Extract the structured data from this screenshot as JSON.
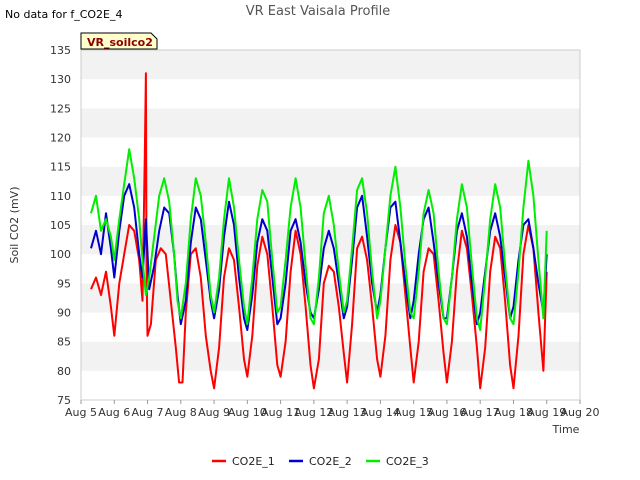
{
  "chart_data": {
    "type": "line",
    "title": "VR East Vaisala Profile",
    "no_data_note": "No data for f_CO2E_4",
    "badge": "VR_soilco2",
    "xlabel": "Time",
    "ylabel": "Soil CO2 (mV)",
    "ylim": [
      75,
      135
    ],
    "yticks": [
      75,
      80,
      85,
      90,
      95,
      100,
      105,
      110,
      115,
      120,
      125,
      130,
      135
    ],
    "xlim": [
      5,
      20
    ],
    "xticks": [
      {
        "value": 5,
        "label": "Aug 5"
      },
      {
        "value": 6,
        "label": "Aug 6"
      },
      {
        "value": 7,
        "label": "Aug 7"
      },
      {
        "value": 8,
        "label": "Aug 8"
      },
      {
        "value": 9,
        "label": "Aug 9"
      },
      {
        "value": 10,
        "label": "Aug 10"
      },
      {
        "value": 11,
        "label": "Aug 11"
      },
      {
        "value": 12,
        "label": "Aug 12"
      },
      {
        "value": 13,
        "label": "Aug 13"
      },
      {
        "value": 14,
        "label": "Aug 14"
      },
      {
        "value": 15,
        "label": "Aug 15"
      },
      {
        "value": 16,
        "label": "Aug 16"
      },
      {
        "value": 17,
        "label": "Aug 17"
      },
      {
        "value": 18,
        "label": "Aug 18"
      },
      {
        "value": 19,
        "label": "Aug 19"
      },
      {
        "value": 20,
        "label": "Aug 20"
      }
    ],
    "legend_position": "bottom-center",
    "grid": true,
    "series": [
      {
        "name": "CO2E_1",
        "color": "#ff0000",
        "x": [
          5.3,
          5.45,
          5.6,
          5.75,
          5.9,
          6.0,
          6.15,
          6.3,
          6.45,
          6.6,
          6.75,
          6.85,
          6.92,
          6.95,
          6.97,
          7.0,
          7.1,
          7.25,
          7.4,
          7.55,
          7.7,
          7.85,
          7.95,
          8.05,
          8.15,
          8.3,
          8.45,
          8.6,
          8.75,
          8.9,
          9.0,
          9.15,
          9.3,
          9.45,
          9.6,
          9.75,
          9.9,
          10.0,
          10.15,
          10.3,
          10.45,
          10.6,
          10.75,
          10.9,
          11.0,
          11.15,
          11.3,
          11.45,
          11.6,
          11.75,
          11.9,
          12.0,
          12.15,
          12.3,
          12.45,
          12.6,
          12.75,
          12.9,
          13.0,
          13.15,
          13.3,
          13.45,
          13.6,
          13.75,
          13.9,
          14.0,
          14.15,
          14.3,
          14.45,
          14.6,
          14.75,
          14.9,
          15.0,
          15.15,
          15.3,
          15.45,
          15.6,
          15.75,
          15.9,
          16.0,
          16.15,
          16.3,
          16.45,
          16.6,
          16.75,
          16.9,
          17.0,
          17.15,
          17.3,
          17.45,
          17.6,
          17.75,
          17.9,
          18.0,
          18.15,
          18.3,
          18.45,
          18.6,
          18.75,
          18.9,
          19.0
        ],
        "values": [
          94,
          96,
          93,
          97,
          91,
          86,
          95,
          100,
          105,
          104,
          99,
          92,
          118,
          131,
          98,
          86,
          88,
          99,
          101,
          100,
          92,
          84,
          78,
          78,
          90,
          100,
          101,
          96,
          86,
          80,
          77,
          84,
          96,
          101,
          99,
          91,
          82,
          79,
          86,
          98,
          103,
          100,
          91,
          81,
          79,
          85,
          97,
          104,
          100,
          91,
          81,
          77,
          82,
          95,
          98,
          97,
          91,
          83,
          78,
          88,
          101,
          103,
          99,
          91,
          82,
          79,
          86,
          99,
          105,
          102,
          93,
          84,
          78,
          85,
          97,
          101,
          100,
          92,
          83,
          78,
          85,
          97,
          104,
          101,
          93,
          84,
          77,
          84,
          97,
          103,
          101,
          92,
          81,
          77,
          86,
          100,
          105,
          101,
          90,
          80,
          97
        ]
      },
      {
        "name": "CO2E_2",
        "color": "#0000cc",
        "x": [
          5.3,
          5.45,
          5.6,
          5.75,
          5.9,
          6.0,
          6.15,
          6.3,
          6.45,
          6.6,
          6.75,
          6.85,
          6.95,
          7.05,
          7.2,
          7.35,
          7.5,
          7.65,
          7.8,
          7.9,
          8.0,
          8.15,
          8.3,
          8.45,
          8.6,
          8.75,
          8.9,
          9.0,
          9.15,
          9.3,
          9.45,
          9.6,
          9.75,
          9.9,
          10.0,
          10.15,
          10.3,
          10.45,
          10.6,
          10.75,
          10.9,
          11.0,
          11.15,
          11.3,
          11.45,
          11.6,
          11.75,
          11.9,
          12.0,
          12.15,
          12.3,
          12.45,
          12.6,
          12.75,
          12.9,
          13.0,
          13.15,
          13.3,
          13.45,
          13.6,
          13.75,
          13.9,
          14.0,
          14.15,
          14.3,
          14.45,
          14.6,
          14.75,
          14.9,
          15.0,
          15.15,
          15.3,
          15.45,
          15.6,
          15.75,
          15.9,
          16.0,
          16.15,
          16.3,
          16.45,
          16.6,
          16.75,
          16.9,
          17.0,
          17.15,
          17.3,
          17.45,
          17.6,
          17.75,
          17.9,
          18.0,
          18.15,
          18.3,
          18.45,
          18.6,
          18.75,
          18.9,
          19.0
        ],
        "values": [
          101,
          104,
          100,
          107,
          101,
          96,
          104,
          110,
          112,
          108,
          100,
          96,
          106,
          94,
          98,
          104,
          108,
          107,
          100,
          93,
          88,
          92,
          102,
          108,
          106,
          99,
          92,
          89,
          94,
          103,
          109,
          105,
          96,
          89,
          87,
          93,
          102,
          106,
          104,
          96,
          88,
          89,
          95,
          104,
          106,
          102,
          95,
          90,
          89,
          94,
          101,
          104,
          101,
          95,
          89,
          91,
          99,
          108,
          110,
          103,
          95,
          90,
          93,
          101,
          108,
          109,
          102,
          95,
          89,
          92,
          100,
          106,
          108,
          102,
          95,
          89,
          89,
          96,
          104,
          107,
          103,
          95,
          88,
          90,
          97,
          104,
          107,
          103,
          96,
          89,
          91,
          99,
          105,
          106,
          101,
          95,
          90,
          100
        ]
      },
      {
        "name": "CO2E_3",
        "color": "#00ee00",
        "x": [
          5.3,
          5.45,
          5.6,
          5.75,
          5.9,
          6.0,
          6.15,
          6.3,
          6.45,
          6.6,
          6.75,
          6.85,
          6.95,
          7.05,
          7.2,
          7.35,
          7.5,
          7.65,
          7.8,
          7.9,
          8.0,
          8.15,
          8.3,
          8.45,
          8.6,
          8.75,
          8.9,
          9.0,
          9.15,
          9.3,
          9.45,
          9.6,
          9.75,
          9.9,
          10.0,
          10.15,
          10.3,
          10.45,
          10.6,
          10.75,
          10.9,
          11.0,
          11.15,
          11.3,
          11.45,
          11.6,
          11.75,
          11.9,
          12.0,
          12.15,
          12.3,
          12.45,
          12.6,
          12.75,
          12.9,
          13.0,
          13.15,
          13.3,
          13.45,
          13.6,
          13.75,
          13.9,
          14.0,
          14.15,
          14.3,
          14.45,
          14.6,
          14.75,
          14.9,
          15.0,
          15.15,
          15.3,
          15.45,
          15.6,
          15.75,
          15.9,
          16.0,
          16.15,
          16.3,
          16.45,
          16.6,
          16.75,
          16.9,
          17.0,
          17.15,
          17.3,
          17.45,
          17.6,
          17.75,
          17.9,
          18.0,
          18.15,
          18.3,
          18.45,
          18.6,
          18.75,
          18.9,
          19.0
        ],
        "values": [
          107,
          110,
          104,
          106,
          103,
          99,
          106,
          112,
          118,
          113,
          106,
          99,
          93,
          96,
          103,
          110,
          113,
          109,
          100,
          92,
          89,
          95,
          106,
          113,
          110,
          102,
          93,
          90,
          96,
          106,
          113,
          108,
          99,
          91,
          88,
          96,
          106,
          111,
          109,
          99,
          90,
          91,
          99,
          108,
          113,
          108,
          98,
          89,
          88,
          96,
          107,
          110,
          105,
          97,
          90,
          92,
          101,
          111,
          113,
          107,
          97,
          89,
          92,
          101,
          110,
          115,
          108,
          98,
          90,
          89,
          97,
          107,
          111,
          107,
          97,
          89,
          88,
          96,
          106,
          112,
          108,
          98,
          89,
          87,
          96,
          106,
          112,
          108,
          98,
          89,
          88,
          97,
          108,
          116,
          110,
          99,
          89,
          104
        ]
      }
    ]
  }
}
